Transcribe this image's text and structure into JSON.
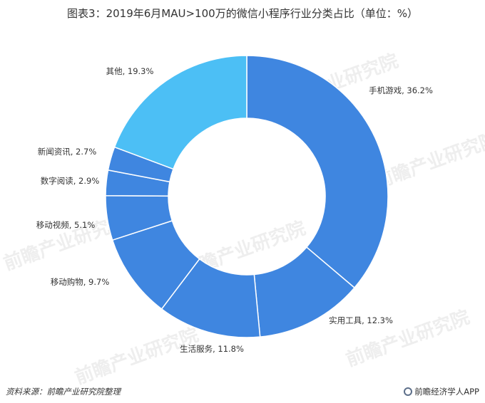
{
  "title": "图表3：2019年6月MAU>100万的微信小程序行业分类占比（单位：%）",
  "source_note": "资料来源：前瞻产业研究院整理",
  "brand": "前瞻经济学人APP",
  "watermark_text": "前瞻产业研究院",
  "chart_data": {
    "type": "pie",
    "donut": true,
    "title": "图表3：2019年6月MAU>100万的微信小程序行业分类占比（单位：%）",
    "categories": [
      "手机游戏",
      "实用工具",
      "生活服务",
      "移动购物",
      "移动视频",
      "数字阅读",
      "新闻资讯",
      "其他"
    ],
    "values": [
      36.2,
      12.3,
      11.8,
      9.7,
      5.1,
      2.9,
      2.7,
      19.3
    ],
    "labels": [
      "手机游戏, 36.2%",
      "实用工具, 12.3%",
      "生活服务, 11.8%",
      "移动购物, 9.7%",
      "移动视频, 5.1%",
      "数字阅读, 2.9%",
      "新闻资讯, 2.7%",
      "其他, 19.3%"
    ],
    "colors": [
      "#3f86e0",
      "#3f86e0",
      "#3f86e0",
      "#3f86e0",
      "#3f86e0",
      "#3f86e0",
      "#3f86e0",
      "#4cbff5"
    ]
  }
}
